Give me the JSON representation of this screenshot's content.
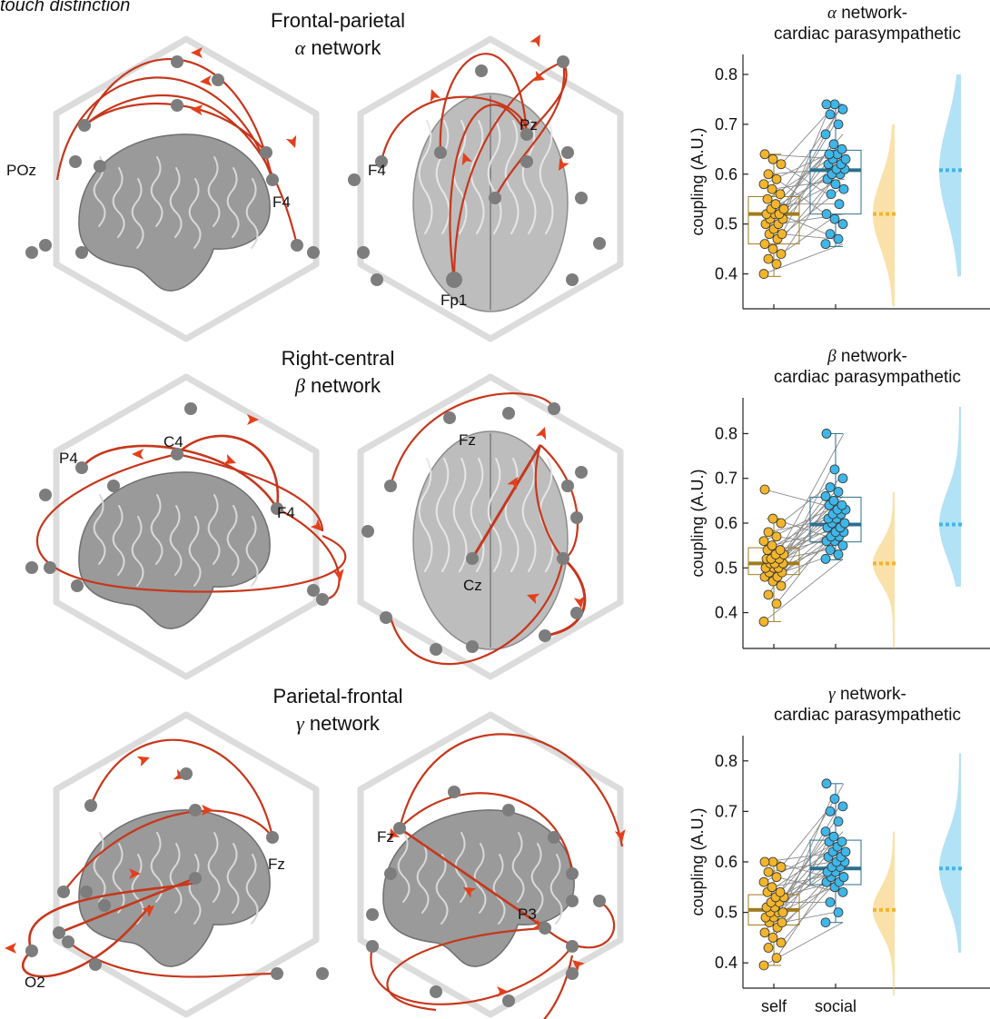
{
  "header_fragment": "touch distinction",
  "panels": [
    {
      "title_line1": "Frontal-parietal",
      "title_symbol": "α",
      "title_rest": " network",
      "left_brain_labels": [
        "POz",
        "F4"
      ],
      "right_brain_labels": [
        "F4",
        "Pz",
        "Fp1"
      ]
    },
    {
      "title_line1": "Right-central",
      "title_symbol": "β",
      "title_rest": " network",
      "left_brain_labels": [
        "P4",
        "C4",
        "F4"
      ],
      "right_brain_labels": [
        "Fz",
        "Cz"
      ]
    },
    {
      "title_line1": "Parietal-frontal",
      "title_symbol": "γ",
      "title_rest": " network",
      "left_brain_labels": [
        "Fz",
        "O2"
      ],
      "right_brain_labels": [
        "Fz",
        "P3"
      ]
    }
  ],
  "colors": {
    "self": "#f2b52b",
    "self_box": "#a07c1e",
    "social": "#3fb6e8",
    "social_box": "#2a6f8f",
    "arc": "#c6371c",
    "node": "#7d7d7d"
  },
  "chart_data": [
    {
      "type": "box+scatter+violin",
      "title_symbol": "α",
      "title_rest": " network-",
      "title_line2": "cardiac parasympathetic",
      "ylabel": "coupling (A.U.)",
      "ylim": [
        0.33,
        0.84
      ],
      "yticks": [
        "0.4",
        "0.5",
        "0.6",
        "0.7",
        "0.8"
      ],
      "categories": [],
      "series": [
        {
          "name": "self",
          "median": 0.52,
          "q1": 0.46,
          "q3": 0.555,
          "min": 0.395,
          "max": 0.64,
          "values": [
            0.4,
            0.42,
            0.43,
            0.44,
            0.45,
            0.46,
            0.47,
            0.48,
            0.48,
            0.49,
            0.5,
            0.5,
            0.51,
            0.51,
            0.52,
            0.52,
            0.52,
            0.53,
            0.53,
            0.54,
            0.55,
            0.56,
            0.57,
            0.58,
            0.59,
            0.6,
            0.62,
            0.63,
            0.64
          ]
        },
        {
          "name": "social",
          "median": 0.608,
          "q1": 0.52,
          "q3": 0.648,
          "min": 0.455,
          "max": 0.74,
          "values": [
            0.46,
            0.47,
            0.48,
            0.5,
            0.51,
            0.52,
            0.54,
            0.56,
            0.57,
            0.58,
            0.59,
            0.6,
            0.6,
            0.61,
            0.61,
            0.62,
            0.62,
            0.63,
            0.63,
            0.64,
            0.64,
            0.65,
            0.66,
            0.68,
            0.7,
            0.72,
            0.73,
            0.74,
            0.74
          ]
        }
      ]
    },
    {
      "type": "box+scatter+violin",
      "title_symbol": "β",
      "title_rest": " network-",
      "title_line2": "cardiac parasympathetic",
      "ylabel": "coupling (A.U.)",
      "ylim": [
        0.32,
        0.88
      ],
      "yticks": [
        "0.4",
        "0.5",
        "0.6",
        "0.7",
        "0.8"
      ],
      "categories": [],
      "series": [
        {
          "name": "self",
          "median": 0.51,
          "q1": 0.485,
          "q3": 0.545,
          "min": 0.38,
          "max": 0.61,
          "values": [
            0.38,
            0.42,
            0.44,
            0.46,
            0.47,
            0.48,
            0.48,
            0.49,
            0.49,
            0.5,
            0.5,
            0.5,
            0.51,
            0.51,
            0.51,
            0.52,
            0.52,
            0.52,
            0.53,
            0.53,
            0.54,
            0.54,
            0.55,
            0.56,
            0.57,
            0.58,
            0.6,
            0.61,
            0.675
          ]
        },
        {
          "name": "social",
          "median": 0.597,
          "q1": 0.558,
          "q3": 0.658,
          "min": 0.518,
          "max": 0.8,
          "values": [
            0.52,
            0.53,
            0.54,
            0.55,
            0.56,
            0.56,
            0.57,
            0.57,
            0.58,
            0.58,
            0.59,
            0.59,
            0.6,
            0.6,
            0.61,
            0.61,
            0.62,
            0.62,
            0.63,
            0.63,
            0.64,
            0.64,
            0.65,
            0.66,
            0.67,
            0.68,
            0.7,
            0.72,
            0.8
          ]
        }
      ]
    },
    {
      "type": "box+scatter+violin",
      "title_symbol": "γ",
      "title_rest": " network-",
      "title_line2": "cardiac parasympathetic",
      "ylabel": "coupling (A.U.)",
      "ylim": [
        0.35,
        0.85
      ],
      "yticks": [
        "0.4",
        "0.5",
        "0.6",
        "0.7",
        "0.8"
      ],
      "categories": [
        "self",
        "social"
      ],
      "series": [
        {
          "name": "self",
          "median": 0.505,
          "q1": 0.475,
          "q3": 0.535,
          "min": 0.395,
          "max": 0.6,
          "values": [
            0.395,
            0.41,
            0.43,
            0.44,
            0.45,
            0.46,
            0.47,
            0.48,
            0.48,
            0.49,
            0.49,
            0.5,
            0.5,
            0.5,
            0.51,
            0.51,
            0.52,
            0.52,
            0.53,
            0.53,
            0.54,
            0.54,
            0.55,
            0.56,
            0.57,
            0.58,
            0.59,
            0.6,
            0.6
          ]
        },
        {
          "name": "social",
          "median": 0.587,
          "q1": 0.555,
          "q3": 0.643,
          "min": 0.48,
          "max": 0.755,
          "values": [
            0.48,
            0.5,
            0.52,
            0.54,
            0.55,
            0.56,
            0.56,
            0.57,
            0.57,
            0.58,
            0.58,
            0.59,
            0.59,
            0.6,
            0.6,
            0.61,
            0.61,
            0.62,
            0.62,
            0.63,
            0.64,
            0.64,
            0.65,
            0.66,
            0.68,
            0.7,
            0.71,
            0.725,
            0.755
          ]
        }
      ]
    }
  ]
}
